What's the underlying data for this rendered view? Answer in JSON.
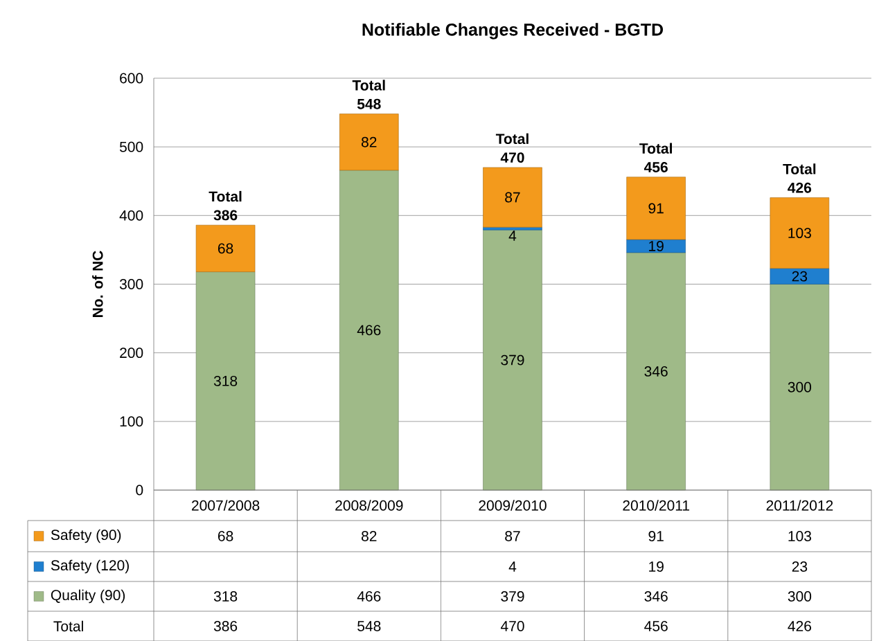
{
  "chart_data": {
    "type": "bar",
    "stacked": true,
    "title": "Notifiable Changes Received - BGTD",
    "ylabel": "No. of NC",
    "categories": [
      "2007/2008",
      "2008/2009",
      "2009/2010",
      "2010/2011",
      "2011/2012"
    ],
    "series": [
      {
        "name": "Quality (90)",
        "color": "#9fba88",
        "values": [
          318,
          466,
          379,
          346,
          300
        ],
        "value_labels": [
          "318",
          "466",
          "379",
          "346",
          "300"
        ]
      },
      {
        "name": "Safety (120)",
        "color": "#1f7fcf",
        "values": [
          null,
          null,
          4,
          19,
          23
        ],
        "value_labels": [
          null,
          null,
          "4",
          "19",
          "23"
        ]
      },
      {
        "name": "Safety (90)",
        "color": "#f39a1c",
        "values": [
          68,
          82,
          87,
          91,
          103
        ],
        "value_labels": [
          "68",
          "82",
          "87",
          "91",
          "103"
        ]
      }
    ],
    "totals": [
      "386",
      "548",
      "470",
      "456",
      "426"
    ],
    "annotations": [
      "Total"
    ],
    "ylim": [
      0,
      600
    ],
    "yticks": [
      0,
      100,
      200,
      300,
      400,
      500,
      600
    ],
    "grid": "y",
    "legend": "bottom"
  }
}
